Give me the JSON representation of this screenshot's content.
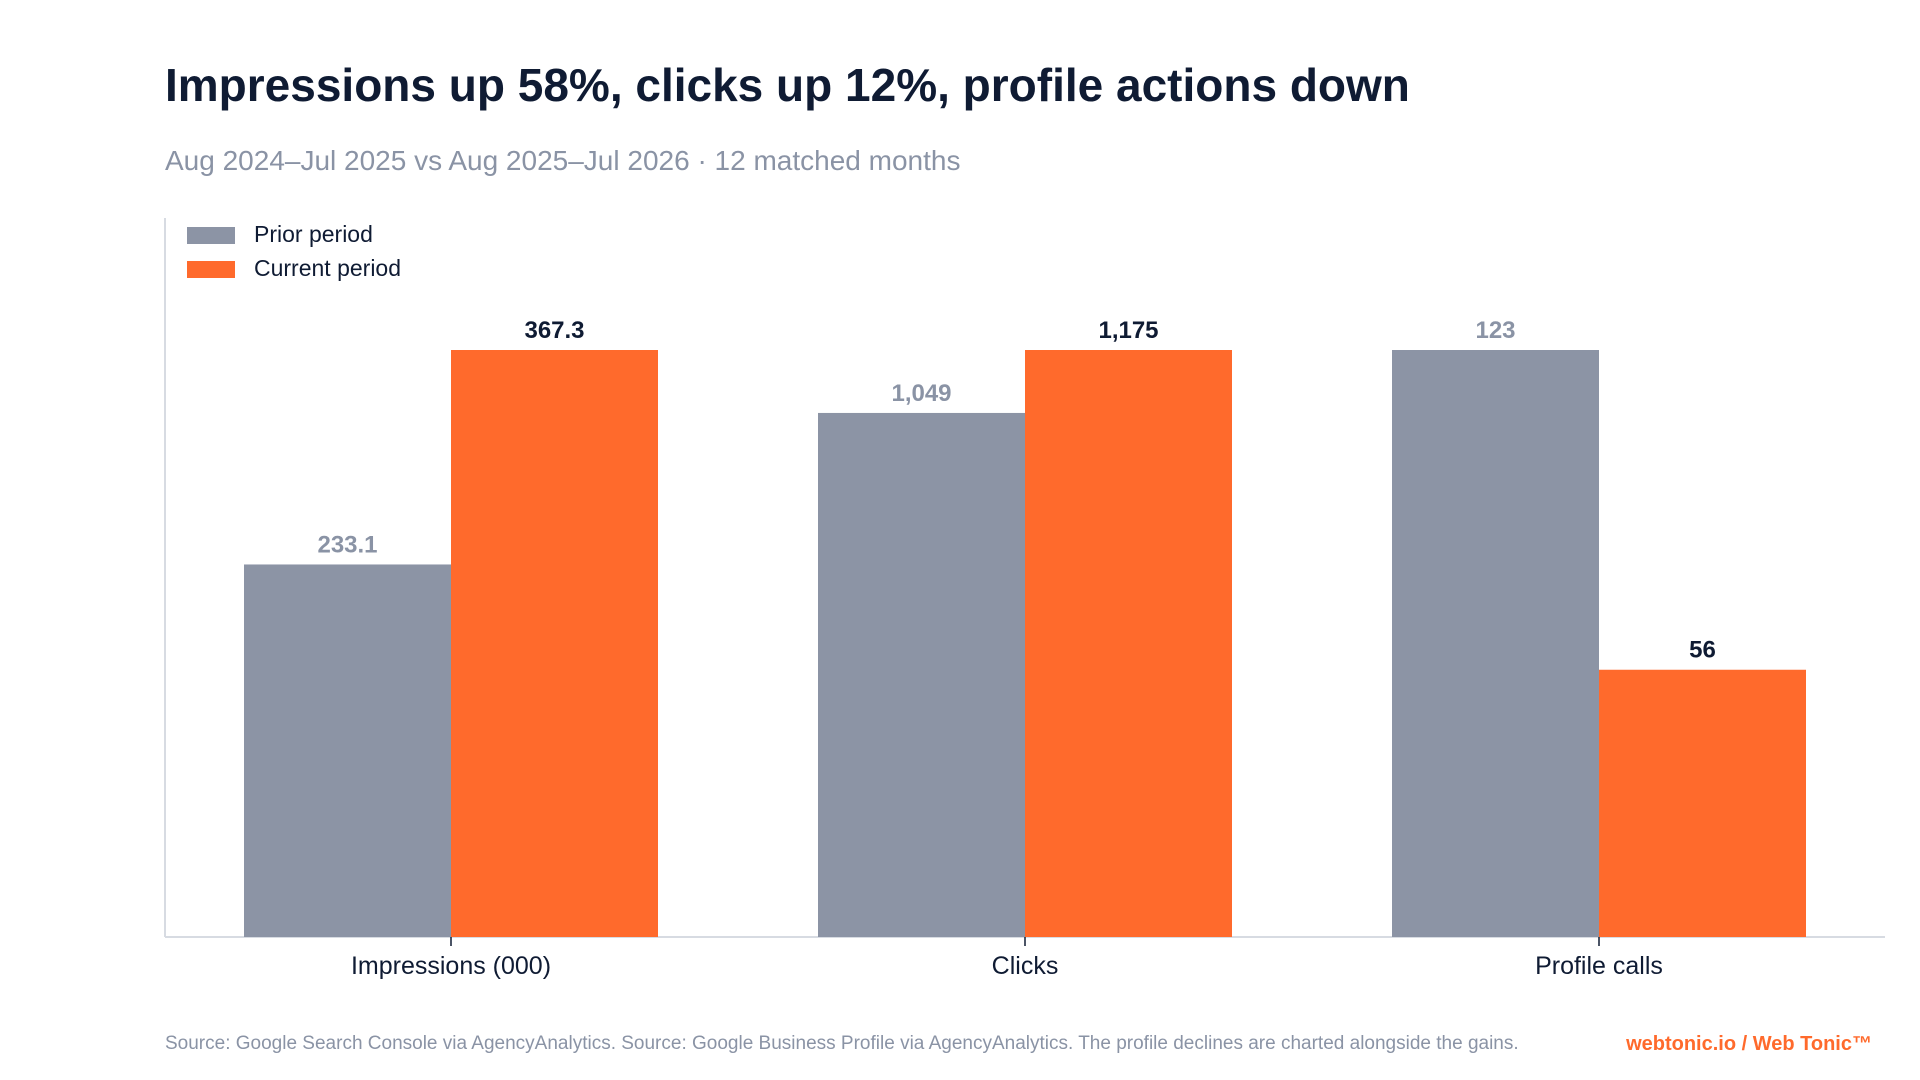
{
  "title": "Impressions up 58%, clicks up 12%, profile actions down",
  "subtitle": "Aug 2024–Jul 2025 vs Aug 2025–Jul 2026 · 12 matched months",
  "footer": {
    "source": "Source: Google Search Console via AgencyAnalytics. Source: Google Business Profile via AgencyAnalytics. The profile declines are charted alongside the gains.",
    "brand": "webtonic.io / Web Tonic™"
  },
  "colors": {
    "prior": "#8c94a5",
    "current": "#ff6a2c",
    "title": "#0f1b33",
    "muted": "#8a93a5",
    "axis": "#d7dbe2"
  },
  "chart_data": {
    "type": "bar",
    "categories": [
      "Impressions (000)",
      "Clicks",
      "Profile calls"
    ],
    "series": [
      {
        "name": "Prior period",
        "values": [
          233.1,
          1049,
          123
        ],
        "labels": [
          "233.1",
          "1,049",
          "123"
        ]
      },
      {
        "name": "Current period",
        "values": [
          367.3,
          1175,
          56
        ],
        "labels": [
          "367.3",
          "1,175",
          "56"
        ]
      }
    ],
    "normalization": "each category scaled to its own maximum",
    "legend": "top-left",
    "grid": false
  }
}
